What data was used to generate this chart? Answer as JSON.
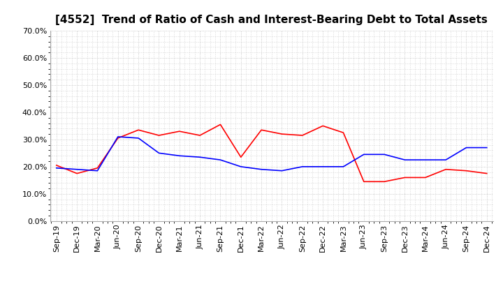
{
  "title": "[4552]  Trend of Ratio of Cash and Interest-Bearing Debt to Total Assets",
  "x_labels": [
    "Sep-19",
    "Dec-19",
    "Mar-20",
    "Jun-20",
    "Sep-20",
    "Dec-20",
    "Mar-21",
    "Jun-21",
    "Sep-21",
    "Dec-21",
    "Mar-22",
    "Jun-22",
    "Sep-22",
    "Dec-22",
    "Mar-23",
    "Jun-23",
    "Sep-23",
    "Dec-23",
    "Mar-24",
    "Jun-24",
    "Sep-24",
    "Dec-24"
  ],
  "cash": [
    20.5,
    17.5,
    19.5,
    30.5,
    33.5,
    31.5,
    33.0,
    31.5,
    35.5,
    23.5,
    33.5,
    32.0,
    31.5,
    35.0,
    32.5,
    14.5,
    14.5,
    16.0,
    16.0,
    19.0,
    18.5,
    17.5
  ],
  "interest_bearing_debt": [
    19.5,
    19.0,
    18.5,
    31.0,
    30.5,
    25.0,
    24.0,
    23.5,
    22.5,
    20.0,
    19.0,
    18.5,
    20.0,
    20.0,
    20.0,
    24.5,
    24.5,
    22.5,
    22.5,
    22.5,
    27.0,
    27.0
  ],
  "cash_color": "#ff0000",
  "ibd_color": "#0000ff",
  "ylim": [
    0.0,
    70.0
  ],
  "yticks": [
    0.0,
    10.0,
    20.0,
    30.0,
    40.0,
    50.0,
    60.0,
    70.0
  ],
  "background_color": "#ffffff",
  "grid_color": "#bbbbbb",
  "title_fontsize": 11,
  "legend_fontsize": 9,
  "tick_fontsize": 8
}
